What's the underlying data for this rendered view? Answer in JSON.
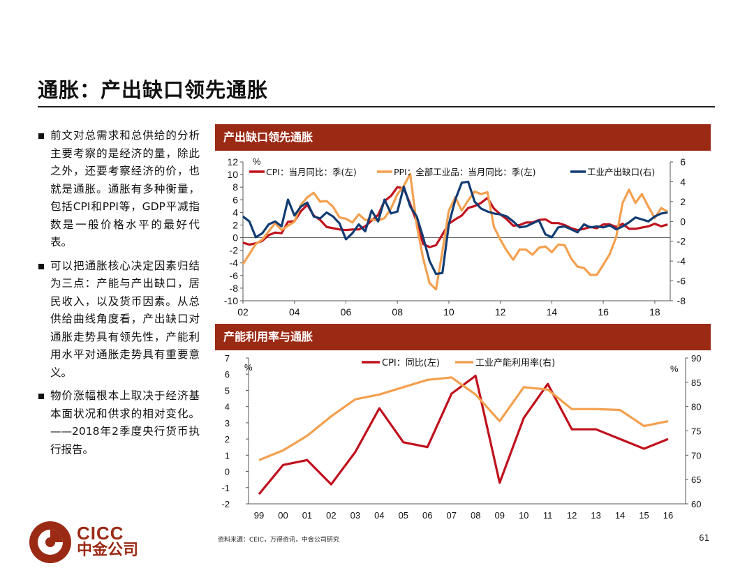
{
  "title": "通胀：产出缺口领先通胀",
  "bullets": [
    "前文对总需求和总供给的分析主要考察的是经济的量，除此之外，还要考察经济的价，也就是通胀。通胀有多种衡量，包括CPI和PPI等，GDP平减指数是一般价格水平的最好代表。",
    "可以把通胀核心决定因素归结为三点：产能与产出缺口，居民收入，以及货币因素。从总供给曲线角度看，产出缺口对通胀走势具有领先性，产能利用水平对通胀走势具有重要意义。",
    "物价涨幅根本上取决于经济基本面状况和供求的相对变化。——2018年2季度央行货币执行报告。"
  ],
  "panel1_title": "产出缺口领先通胀",
  "panel2_title": "产能利用率与通胀",
  "source": "资料来源：CEIC，万得资讯，中金公司研究",
  "page_number": "61",
  "logo": {
    "en": "CICC",
    "cn": "中金公司"
  },
  "colors": {
    "red": "#c0111d",
    "orange": "#f3a04f",
    "navy": "#123c73",
    "header": "#9b2a15"
  },
  "chart_data": [
    {
      "type": "line",
      "left_unit": "%",
      "left_ylim": [
        -10,
        12
      ],
      "left_ticks": [
        "12",
        "10",
        "8",
        "6",
        "4",
        "2",
        "0",
        "-2",
        "-4",
        "-6",
        "-8",
        "-10"
      ],
      "right_ylim": [
        -8,
        6
      ],
      "right_ticks": [
        "6",
        "4",
        "2",
        "0",
        "-2",
        "-4",
        "-6",
        "-8"
      ],
      "x_ticks": [
        "02",
        "04",
        "06",
        "08",
        "10",
        "12",
        "14",
        "16",
        "18"
      ],
      "x_tick_years": [
        2002,
        2004,
        2006,
        2008,
        2010,
        2012,
        2014,
        2016,
        2018
      ],
      "xlim": [
        2002,
        2018.6
      ],
      "series": [
        {
          "name": "CPI：当月同比：季(左)",
          "axis": "left",
          "color": "#c0111d",
          "points": [
            [
              2002.0,
              -0.8
            ],
            [
              2002.25,
              -1.1
            ],
            [
              2002.5,
              -0.9
            ],
            [
              2002.75,
              -0.5
            ],
            [
              2003.0,
              0.4
            ],
            [
              2003.25,
              0.8
            ],
            [
              2003.5,
              0.7
            ],
            [
              2003.75,
              2.5
            ],
            [
              2004.0,
              2.6
            ],
            [
              2004.25,
              4.2
            ],
            [
              2004.5,
              5.2
            ],
            [
              2004.75,
              3.5
            ],
            [
              2005.0,
              2.8
            ],
            [
              2005.25,
              1.7
            ],
            [
              2005.5,
              1.5
            ],
            [
              2005.75,
              1.3
            ],
            [
              2006.0,
              1.2
            ],
            [
              2006.25,
              1.3
            ],
            [
              2006.5,
              1.3
            ],
            [
              2006.75,
              1.8
            ],
            [
              2007.0,
              2.7
            ],
            [
              2007.25,
              3.6
            ],
            [
              2007.5,
              5.8
            ],
            [
              2007.75,
              6.6
            ],
            [
              2008.0,
              8.0
            ],
            [
              2008.25,
              7.8
            ],
            [
              2008.5,
              5.3
            ],
            [
              2008.75,
              2.5
            ],
            [
              2009.0,
              -1.0
            ],
            [
              2009.25,
              -1.5
            ],
            [
              2009.5,
              -1.2
            ],
            [
              2009.75,
              0.5
            ],
            [
              2010.0,
              2.2
            ],
            [
              2010.25,
              2.9
            ],
            [
              2010.5,
              3.5
            ],
            [
              2010.75,
              4.7
            ],
            [
              2011.0,
              5.0
            ],
            [
              2011.25,
              5.5
            ],
            [
              2011.5,
              6.3
            ],
            [
              2011.75,
              4.6
            ],
            [
              2012.0,
              3.7
            ],
            [
              2012.25,
              2.9
            ],
            [
              2012.5,
              1.9
            ],
            [
              2012.75,
              2.0
            ],
            [
              2013.0,
              2.4
            ],
            [
              2013.25,
              2.4
            ],
            [
              2013.5,
              2.8
            ],
            [
              2013.75,
              2.9
            ],
            [
              2014.0,
              2.3
            ],
            [
              2014.25,
              2.3
            ],
            [
              2014.5,
              2.0
            ],
            [
              2014.75,
              1.5
            ],
            [
              2015.0,
              1.2
            ],
            [
              2015.25,
              1.4
            ],
            [
              2015.5,
              1.7
            ],
            [
              2015.75,
              1.5
            ],
            [
              2016.0,
              2.1
            ],
            [
              2016.25,
              2.1
            ],
            [
              2016.5,
              1.7
            ],
            [
              2016.75,
              2.2
            ],
            [
              2017.0,
              1.4
            ],
            [
              2017.25,
              1.4
            ],
            [
              2017.5,
              1.6
            ],
            [
              2017.75,
              1.8
            ],
            [
              2018.0,
              2.2
            ],
            [
              2018.25,
              1.8
            ],
            [
              2018.5,
              2.1
            ]
          ]
        },
        {
          "name": "PPI：全部工业品：当月同比：季(左)",
          "axis": "left",
          "color": "#f3a04f",
          "points": [
            [
              2002.0,
              -4.2
            ],
            [
              2002.25,
              -2.6
            ],
            [
              2002.5,
              -1.0
            ],
            [
              2002.75,
              -0.3
            ],
            [
              2003.0,
              1.0
            ],
            [
              2003.25,
              2.3
            ],
            [
              2003.5,
              1.2
            ],
            [
              2003.75,
              1.9
            ],
            [
              2004.0,
              2.5
            ],
            [
              2004.25,
              5.2
            ],
            [
              2004.5,
              6.4
            ],
            [
              2004.75,
              7.1
            ],
            [
              2005.0,
              5.7
            ],
            [
              2005.25,
              5.8
            ],
            [
              2005.5,
              4.9
            ],
            [
              2005.75,
              3.2
            ],
            [
              2006.0,
              3.0
            ],
            [
              2006.25,
              2.4
            ],
            [
              2006.5,
              3.7
            ],
            [
              2006.75,
              2.8
            ],
            [
              2007.0,
              2.9
            ],
            [
              2007.25,
              2.7
            ],
            [
              2007.5,
              3.1
            ],
            [
              2007.75,
              4.6
            ],
            [
              2008.0,
              6.9
            ],
            [
              2008.25,
              8.2
            ],
            [
              2008.5,
              10.1
            ],
            [
              2008.75,
              2.0
            ],
            [
              2009.0,
              -3.3
            ],
            [
              2009.25,
              -7.2
            ],
            [
              2009.5,
              -8.2
            ],
            [
              2009.75,
              -2.2
            ],
            [
              2010.0,
              4.3
            ],
            [
              2010.25,
              6.4
            ],
            [
              2010.5,
              4.3
            ],
            [
              2010.75,
              5.9
            ],
            [
              2011.0,
              7.3
            ],
            [
              2011.25,
              6.9
            ],
            [
              2011.5,
              7.2
            ],
            [
              2011.75,
              1.7
            ],
            [
              2012.0,
              -0.3
            ],
            [
              2012.25,
              -2.1
            ],
            [
              2012.5,
              -3.5
            ],
            [
              2012.75,
              -1.9
            ],
            [
              2013.0,
              -1.9
            ],
            [
              2013.25,
              -2.7
            ],
            [
              2013.5,
              -1.6
            ],
            [
              2013.75,
              -1.4
            ],
            [
              2014.0,
              -2.3
            ],
            [
              2014.25,
              -1.1
            ],
            [
              2014.5,
              -1.2
            ],
            [
              2014.75,
              -3.3
            ],
            [
              2015.0,
              -4.6
            ],
            [
              2015.25,
              -4.8
            ],
            [
              2015.5,
              -5.9
            ],
            [
              2015.75,
              -5.9
            ],
            [
              2016.0,
              -4.3
            ],
            [
              2016.25,
              -2.6
            ],
            [
              2016.5,
              0.1
            ],
            [
              2016.75,
              5.5
            ],
            [
              2017.0,
              7.6
            ],
            [
              2017.25,
              5.5
            ],
            [
              2017.5,
              6.9
            ],
            [
              2017.75,
              4.9
            ],
            [
              2018.0,
              3.1
            ],
            [
              2018.25,
              4.7
            ],
            [
              2018.5,
              4.1
            ]
          ]
        },
        {
          "name": "工业产出缺口(右)",
          "axis": "right",
          "color": "#123c73",
          "points": [
            [
              2002.0,
              0.5
            ],
            [
              2002.25,
              0.0
            ],
            [
              2002.5,
              -1.6
            ],
            [
              2002.75,
              -1.2
            ],
            [
              2003.0,
              -0.3
            ],
            [
              2003.25,
              0.0
            ],
            [
              2003.5,
              -0.5
            ],
            [
              2003.75,
              2.2
            ],
            [
              2004.0,
              0.6
            ],
            [
              2004.25,
              1.5
            ],
            [
              2004.5,
              1.9
            ],
            [
              2004.75,
              0.5
            ],
            [
              2005.0,
              0.3
            ],
            [
              2005.25,
              0.9
            ],
            [
              2005.5,
              0.5
            ],
            [
              2005.75,
              -0.2
            ],
            [
              2006.0,
              -1.8
            ],
            [
              2006.25,
              -1.2
            ],
            [
              2006.5,
              -0.3
            ],
            [
              2006.75,
              -1.0
            ],
            [
              2007.0,
              1.1
            ],
            [
              2007.25,
              0.0
            ],
            [
              2007.5,
              2.2
            ],
            [
              2007.75,
              0.8
            ],
            [
              2008.0,
              1.0
            ],
            [
              2008.25,
              3.5
            ],
            [
              2008.5,
              1.5
            ],
            [
              2008.75,
              0.5
            ],
            [
              2009.0,
              -1.6
            ],
            [
              2009.25,
              -4.0
            ],
            [
              2009.5,
              -5.3
            ],
            [
              2009.75,
              -5.2
            ],
            [
              2010.0,
              -0.3
            ],
            [
              2010.25,
              2.2
            ],
            [
              2010.5,
              3.9
            ],
            [
              2010.75,
              4.0
            ],
            [
              2011.0,
              2.0
            ],
            [
              2011.25,
              1.3
            ],
            [
              2011.5,
              1.0
            ],
            [
              2011.75,
              0.8
            ],
            [
              2012.0,
              0.7
            ],
            [
              2012.25,
              0.5
            ],
            [
              2012.5,
              0.0
            ],
            [
              2012.75,
              -0.6
            ],
            [
              2013.0,
              -0.5
            ],
            [
              2013.25,
              -0.2
            ],
            [
              2013.5,
              0.1
            ],
            [
              2013.75,
              -1.3
            ],
            [
              2014.0,
              -1.6
            ],
            [
              2014.25,
              -0.6
            ],
            [
              2014.5,
              -0.5
            ],
            [
              2014.75,
              -0.8
            ],
            [
              2015.0,
              -1.1
            ],
            [
              2015.25,
              -0.3
            ],
            [
              2015.5,
              -0.6
            ],
            [
              2015.75,
              -0.5
            ],
            [
              2016.0,
              -0.6
            ],
            [
              2016.25,
              -0.4
            ],
            [
              2016.5,
              -0.8
            ],
            [
              2016.75,
              -0.5
            ],
            [
              2017.0,
              -0.1
            ],
            [
              2017.25,
              0.4
            ],
            [
              2017.5,
              0.2
            ],
            [
              2017.75,
              0.0
            ],
            [
              2018.0,
              0.5
            ],
            [
              2018.25,
              0.8
            ],
            [
              2018.5,
              0.9
            ]
          ]
        }
      ]
    },
    {
      "type": "line",
      "left_unit": "%",
      "right_unit": "%",
      "left_ylim": [
        -2,
        7
      ],
      "left_ticks": [
        "7",
        "6",
        "5",
        "4",
        "3",
        "2",
        "1",
        "0",
        "-1",
        "-2"
      ],
      "right_ylim": [
        60,
        90
      ],
      "right_ticks": [
        "90",
        "85",
        "80",
        "75",
        "70",
        "65",
        "60"
      ],
      "categories": [
        "99",
        "00",
        "01",
        "02",
        "03",
        "04",
        "05",
        "06",
        "07",
        "08",
        "09",
        "10",
        "11",
        "12",
        "13",
        "14",
        "15",
        "16"
      ],
      "series": [
        {
          "name": "CPI：同比(左)",
          "axis": "left",
          "color": "#c0111d",
          "values": [
            -1.4,
            0.4,
            0.7,
            -0.8,
            1.2,
            3.9,
            1.8,
            1.5,
            4.8,
            5.9,
            -0.7,
            3.3,
            5.4,
            2.6,
            2.6,
            2.0,
            1.4,
            2.0
          ]
        },
        {
          "name": "工业产能利用率(右)",
          "axis": "right",
          "color": "#f3a04f",
          "values": [
            69.0,
            71.0,
            74.0,
            78.0,
            81.5,
            82.5,
            84.0,
            85.5,
            86.0,
            82.5,
            77.0,
            84.0,
            83.5,
            79.5,
            79.5,
            79.3,
            76.0,
            77.0
          ]
        }
      ]
    }
  ]
}
